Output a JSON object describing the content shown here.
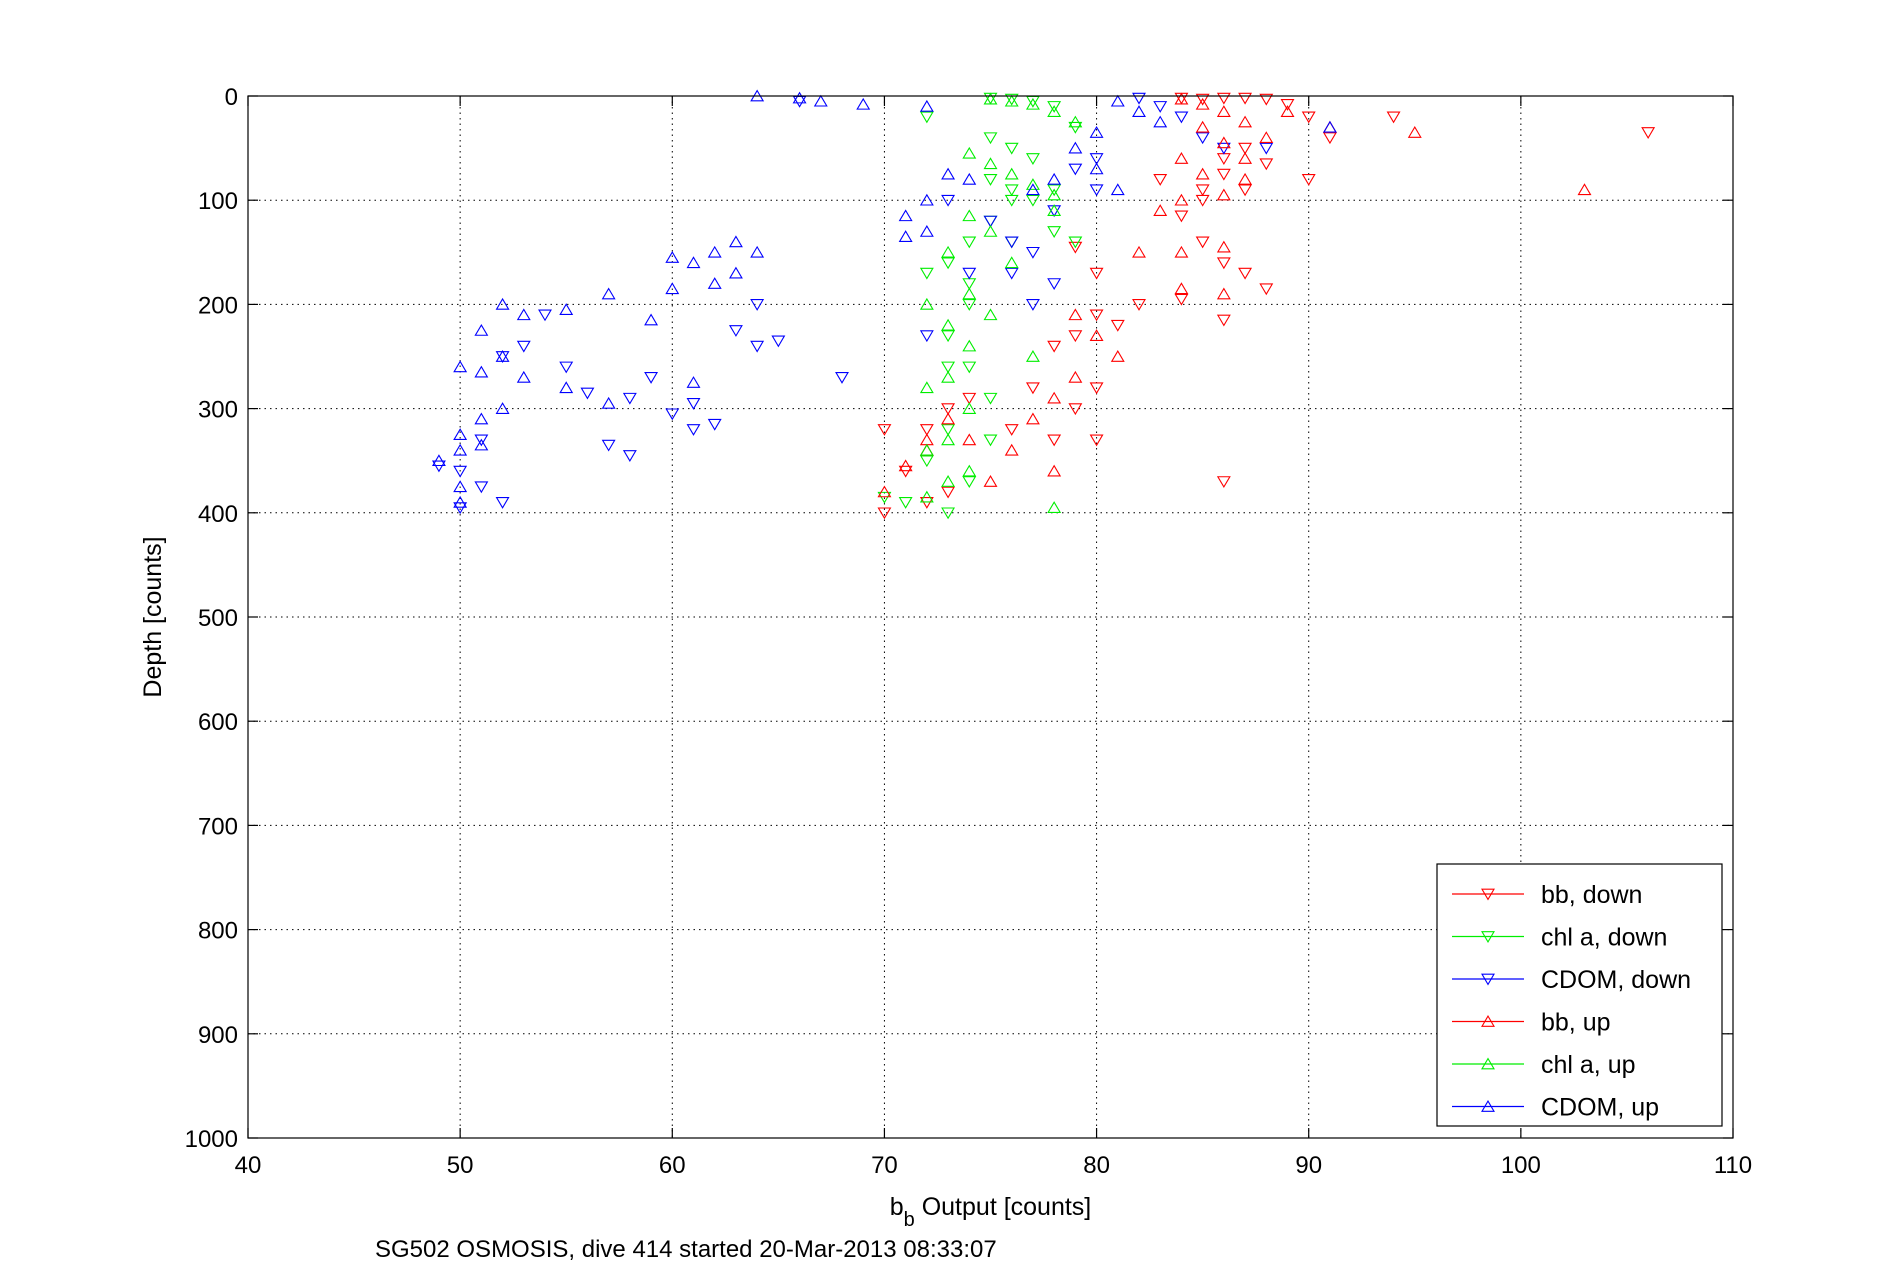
{
  "chart_data": {
    "type": "scatter",
    "title": "",
    "xlabel": {
      "main": "b",
      "sub": "b",
      "rest": " Output [counts]"
    },
    "ylabel": "Depth [counts]",
    "caption": "SG502 OSMOSIS, dive 414 started 20-Mar-2013 08:33:07",
    "xlim": [
      40,
      110
    ],
    "ylim": [
      0,
      1000
    ],
    "y_reversed": true,
    "xticks": [
      40,
      50,
      60,
      70,
      80,
      90,
      100,
      110
    ],
    "yticks": [
      0,
      100,
      200,
      300,
      400,
      500,
      600,
      700,
      800,
      900,
      1000
    ],
    "grid": true,
    "legend_position": "bottom-right",
    "series": [
      {
        "name": "bb, down",
        "color": "#ff0000",
        "marker": "triangle-down",
        "points": [
          [
            84,
            2
          ],
          [
            85,
            3
          ],
          [
            86,
            2
          ],
          [
            87,
            2
          ],
          [
            88,
            3
          ],
          [
            89,
            8
          ],
          [
            90,
            20
          ],
          [
            91,
            40
          ],
          [
            94,
            20
          ],
          [
            106,
            35
          ],
          [
            88,
            65
          ],
          [
            90,
            80
          ],
          [
            87,
            90
          ],
          [
            86,
            75
          ],
          [
            85,
            100
          ],
          [
            84,
            115
          ],
          [
            83,
            80
          ],
          [
            85,
            140
          ],
          [
            86,
            160
          ],
          [
            87,
            170
          ],
          [
            88,
            185
          ],
          [
            84,
            195
          ],
          [
            82,
            200
          ],
          [
            80,
            210
          ],
          [
            81,
            220
          ],
          [
            79,
            230
          ],
          [
            80,
            280
          ],
          [
            79,
            300
          ],
          [
            78,
            240
          ],
          [
            77,
            280
          ],
          [
            76,
            320
          ],
          [
            78,
            330
          ],
          [
            80,
            330
          ],
          [
            74,
            290
          ],
          [
            73,
            300
          ],
          [
            72,
            320
          ],
          [
            71,
            360
          ],
          [
            72,
            390
          ],
          [
            73,
            380
          ],
          [
            70,
            400
          ],
          [
            70,
            320
          ],
          [
            86,
            370
          ],
          [
            86,
            215
          ],
          [
            79,
            145
          ],
          [
            80,
            170
          ],
          [
            85,
            90
          ],
          [
            86,
            60
          ],
          [
            87,
            50
          ]
        ]
      },
      {
        "name": "chl a, down",
        "color": "#00ee00",
        "marker": "triangle-down",
        "points": [
          [
            75,
            2
          ],
          [
            76,
            3
          ],
          [
            77,
            5
          ],
          [
            78,
            10
          ],
          [
            79,
            30
          ],
          [
            72,
            20
          ],
          [
            75,
            40
          ],
          [
            76,
            50
          ],
          [
            77,
            60
          ],
          [
            78,
            90
          ],
          [
            76,
            100
          ],
          [
            75,
            120
          ],
          [
            74,
            140
          ],
          [
            76,
            140
          ],
          [
            73,
            160
          ],
          [
            72,
            170
          ],
          [
            74,
            200
          ],
          [
            73,
            230
          ],
          [
            74,
            260
          ],
          [
            75,
            290
          ],
          [
            73,
            320
          ],
          [
            72,
            350
          ],
          [
            74,
            370
          ],
          [
            73,
            400
          ],
          [
            71,
            390
          ],
          [
            70,
            385
          ],
          [
            75,
            80
          ],
          [
            76,
            90
          ],
          [
            77,
            100
          ],
          [
            78,
            130
          ],
          [
            79,
            140
          ],
          [
            74,
            180
          ],
          [
            73,
            260
          ],
          [
            75,
            330
          ]
        ]
      },
      {
        "name": "CDOM, down",
        "color": "#0000ff",
        "marker": "triangle-down",
        "points": [
          [
            82,
            2
          ],
          [
            83,
            10
          ],
          [
            84,
            20
          ],
          [
            85,
            40
          ],
          [
            86,
            50
          ],
          [
            80,
            60
          ],
          [
            79,
            70
          ],
          [
            80,
            90
          ],
          [
            78,
            110
          ],
          [
            77,
            150
          ],
          [
            76,
            170
          ],
          [
            74,
            170
          ],
          [
            77,
            200
          ],
          [
            72,
            230
          ],
          [
            73,
            100
          ],
          [
            75,
            120
          ],
          [
            76,
            140
          ],
          [
            78,
            180
          ],
          [
            66,
            5
          ],
          [
            64,
            200
          ],
          [
            63,
            225
          ],
          [
            65,
            235
          ],
          [
            68,
            270
          ],
          [
            64,
            240
          ],
          [
            60,
            305
          ],
          [
            61,
            320
          ],
          [
            62,
            315
          ],
          [
            57,
            335
          ],
          [
            58,
            345
          ],
          [
            59,
            270
          ],
          [
            56,
            285
          ],
          [
            55,
            260
          ],
          [
            51,
            330
          ],
          [
            50,
            360
          ],
          [
            49,
            355
          ],
          [
            51,
            375
          ],
          [
            52,
            390
          ],
          [
            50,
            395
          ],
          [
            53,
            240
          ],
          [
            52,
            250
          ],
          [
            54,
            210
          ],
          [
            58,
            290
          ],
          [
            61,
            295
          ],
          [
            88,
            50
          ]
        ]
      },
      {
        "name": "bb, up",
        "color": "#ff0000",
        "marker": "triangle-up",
        "points": [
          [
            84,
            3
          ],
          [
            85,
            8
          ],
          [
            86,
            15
          ],
          [
            87,
            25
          ],
          [
            88,
            40
          ],
          [
            89,
            15
          ],
          [
            91,
            30
          ],
          [
            95,
            35
          ],
          [
            103,
            90
          ],
          [
            85,
            30
          ],
          [
            86,
            45
          ],
          [
            84,
            60
          ],
          [
            85,
            75
          ],
          [
            87,
            80
          ],
          [
            84,
            100
          ],
          [
            83,
            110
          ],
          [
            82,
            150
          ],
          [
            84,
            150
          ],
          [
            86,
            145
          ],
          [
            84,
            185
          ],
          [
            86,
            190
          ],
          [
            79,
            210
          ],
          [
            80,
            230
          ],
          [
            81,
            250
          ],
          [
            79,
            270
          ],
          [
            78,
            290
          ],
          [
            77,
            310
          ],
          [
            76,
            340
          ],
          [
            78,
            360
          ],
          [
            75,
            370
          ],
          [
            74,
            330
          ],
          [
            73,
            310
          ],
          [
            72,
            330
          ],
          [
            71,
            355
          ],
          [
            70,
            380
          ],
          [
            72,
            340
          ],
          [
            86,
            95
          ],
          [
            87,
            60
          ]
        ]
      },
      {
        "name": "chl a, up",
        "color": "#00ee00",
        "marker": "triangle-up",
        "points": [
          [
            75,
            3
          ],
          [
            76,
            5
          ],
          [
            77,
            8
          ],
          [
            78,
            15
          ],
          [
            79,
            25
          ],
          [
            74,
            55
          ],
          [
            75,
            65
          ],
          [
            76,
            75
          ],
          [
            77,
            85
          ],
          [
            78,
            95
          ],
          [
            74,
            115
          ],
          [
            75,
            130
          ],
          [
            73,
            150
          ],
          [
            74,
            190
          ],
          [
            72,
            200
          ],
          [
            73,
            220
          ],
          [
            74,
            240
          ],
          [
            73,
            270
          ],
          [
            72,
            280
          ],
          [
            74,
            300
          ],
          [
            73,
            330
          ],
          [
            72,
            340
          ],
          [
            74,
            360
          ],
          [
            73,
            370
          ],
          [
            72,
            385
          ],
          [
            78,
            395
          ],
          [
            76,
            160
          ],
          [
            77,
            250
          ],
          [
            75,
            210
          ],
          [
            78,
            110
          ]
        ]
      },
      {
        "name": "CDOM, up",
        "color": "#0000ff",
        "marker": "triangle-up",
        "points": [
          [
            64,
            0
          ],
          [
            66,
            2
          ],
          [
            67,
            5
          ],
          [
            69,
            8
          ],
          [
            72,
            10
          ],
          [
            81,
            5
          ],
          [
            82,
            15
          ],
          [
            83,
            25
          ],
          [
            80,
            35
          ],
          [
            79,
            50
          ],
          [
            80,
            70
          ],
          [
            78,
            80
          ],
          [
            77,
            90
          ],
          [
            74,
            80
          ],
          [
            73,
            75
          ],
          [
            72,
            100
          ],
          [
            71,
            115
          ],
          [
            71,
            135
          ],
          [
            72,
            130
          ],
          [
            62,
            150
          ],
          [
            63,
            140
          ],
          [
            64,
            150
          ],
          [
            61,
            160
          ],
          [
            60,
            155
          ],
          [
            60,
            185
          ],
          [
            62,
            180
          ],
          [
            63,
            170
          ],
          [
            57,
            190
          ],
          [
            59,
            215
          ],
          [
            55,
            205
          ],
          [
            53,
            210
          ],
          [
            52,
            200
          ],
          [
            51,
            225
          ],
          [
            52,
            250
          ],
          [
            53,
            270
          ],
          [
            51,
            265
          ],
          [
            50,
            260
          ],
          [
            55,
            280
          ],
          [
            57,
            295
          ],
          [
            52,
            300
          ],
          [
            51,
            310
          ],
          [
            50,
            325
          ],
          [
            49,
            350
          ],
          [
            50,
            340
          ],
          [
            51,
            335
          ],
          [
            50,
            375
          ],
          [
            50,
            390
          ],
          [
            61,
            275
          ],
          [
            81,
            90
          ],
          [
            91,
            30
          ]
        ]
      }
    ]
  }
}
